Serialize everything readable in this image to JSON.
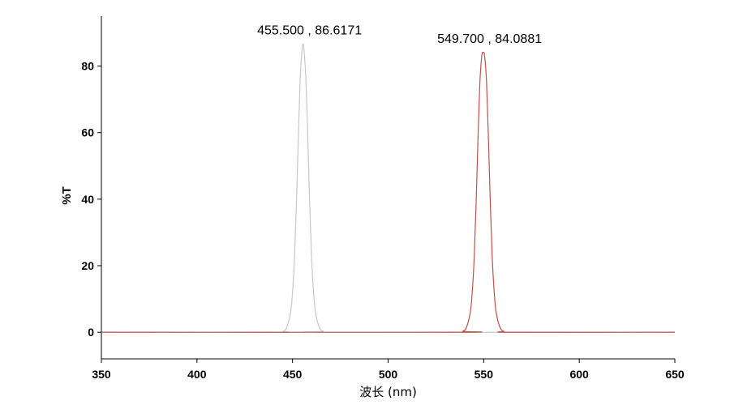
{
  "chart_data": {
    "type": "line",
    "xlabel": "波长 (nm)",
    "ylabel": "%T",
    "xlim": [
      350,
      650
    ],
    "ylim": [
      -8,
      95
    ],
    "x_ticks": [
      350,
      400,
      450,
      500,
      550,
      600,
      650
    ],
    "y_ticks": [
      0,
      20,
      40,
      60,
      80
    ],
    "grid": false,
    "legend": "none",
    "series": [
      {
        "color": "#c8c8c8",
        "x": [
          350,
          440,
          445,
          447,
          449,
          450,
          451,
          452,
          453,
          454,
          455,
          455.5,
          456,
          457,
          458,
          459,
          460,
          461,
          462,
          464,
          466,
          470,
          650
        ],
        "y": [
          0,
          0,
          0.3,
          1.5,
          6,
          12,
          22,
          38,
          58,
          76,
          85,
          86.6171,
          85,
          76,
          58,
          38,
          22,
          12,
          6,
          1.5,
          0.3,
          0,
          0
        ]
      },
      {
        "color": "#c0504d",
        "x": [
          350,
          534,
          539,
          541,
          543,
          544,
          545,
          546,
          547,
          548,
          549,
          549.7,
          550.5,
          551.5,
          552.5,
          553.5,
          554.5,
          555.5,
          556.5,
          558.5,
          560.5,
          565,
          650
        ],
        "y": [
          0,
          0,
          0.3,
          1.5,
          6,
          12,
          22,
          38,
          58,
          75,
          83,
          84.0881,
          83,
          75,
          58,
          38,
          22,
          12,
          6,
          1.5,
          0.3,
          0,
          0
        ]
      }
    ],
    "annotations": [
      {
        "x": 455.5,
        "y": 86.6171,
        "text": "455.500 , 86.6171"
      },
      {
        "x": 549.7,
        "y": 84.0881,
        "text": "549.700 , 84.0881"
      }
    ]
  }
}
